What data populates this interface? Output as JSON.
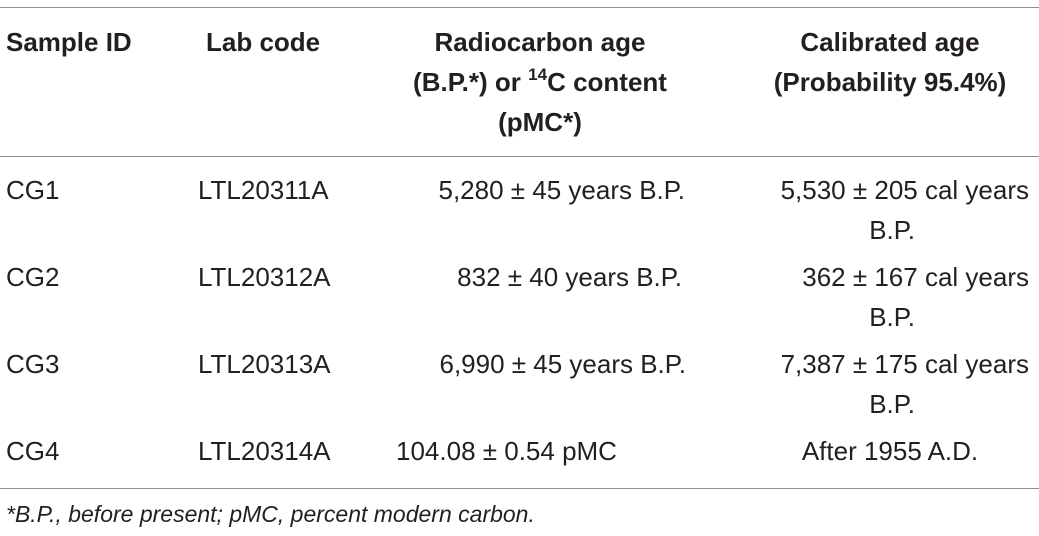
{
  "table": {
    "headers": {
      "sample_id": "Sample ID",
      "lab_code": "Lab code",
      "radiocarbon_line1": "Radiocarbon age",
      "radiocarbon_line2_pre": "(B.P.*) or ",
      "radiocarbon_sup": "14",
      "radiocarbon_line2_post": "C content",
      "radiocarbon_line3": "(pMC*)",
      "calibrated_line1": "Calibrated age",
      "calibrated_line2": "(Probability 95.4%)"
    },
    "rows": [
      {
        "sample_id": "CG1",
        "lab_code": "LTL20311A",
        "radiocarbon": "5,280 ± 45 years B.P.",
        "calibrated_line1": "5,530 ± 205 cal years",
        "calibrated_line2": "B.P."
      },
      {
        "sample_id": "CG2",
        "lab_code": "LTL20312A",
        "radiocarbon": "832 ± 40 years B.P.",
        "calibrated_line1": "362 ± 167 cal years",
        "calibrated_line2": "B.P."
      },
      {
        "sample_id": "CG3",
        "lab_code": "LTL20313A",
        "radiocarbon": "6,990 ± 45 years B.P.",
        "calibrated_line1": "7,387 ± 175 cal years",
        "calibrated_line2": "B.P."
      },
      {
        "sample_id": "CG4",
        "lab_code": "LTL20314A",
        "radiocarbon": "104.08 ± 0.54 pMC",
        "calibrated_line1": "After 1955 A.D.",
        "calibrated_line2": ""
      }
    ],
    "footnote": "*B.P., before present; pMC, percent modern carbon."
  }
}
